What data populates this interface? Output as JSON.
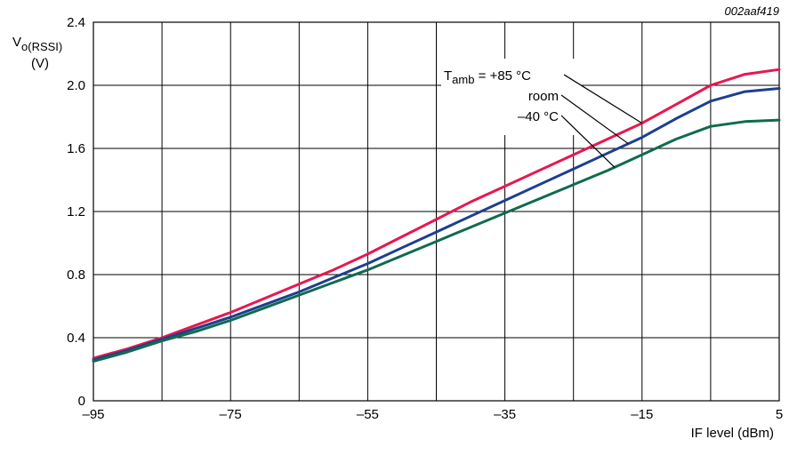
{
  "figure_id": "002aaf419",
  "chart_data": {
    "type": "line",
    "ylabel_main": "V",
    "ylabel_sub": "o(RSSI)",
    "ylabel_unit": "(V)",
    "xlabel": "IF level (dBm)",
    "xlim": [
      -95,
      5
    ],
    "ylim": [
      0,
      2.4
    ],
    "grid": true,
    "x_ticks": [
      -95,
      -75,
      -55,
      -35,
      -15,
      5
    ],
    "y_ticks": [
      0,
      0.4,
      0.8,
      1.2,
      1.6,
      2.0,
      2.4
    ],
    "x_tick_labels": [
      "–95",
      "–75",
      "–55",
      "–35",
      "–15",
      "5"
    ],
    "y_tick_labels": [
      "0",
      "0.4",
      "0.8",
      "1.2",
      "1.6",
      "2.0",
      "2.4"
    ],
    "x": [
      -95,
      -90,
      -85,
      -80,
      -75,
      -70,
      -65,
      -60,
      -55,
      -50,
      -45,
      -40,
      -35,
      -30,
      -25,
      -20,
      -15,
      -10,
      -5,
      0,
      5
    ],
    "series": [
      {
        "name": "Tamb = +85 °C",
        "color": "#e8174f",
        "values": [
          0.27,
          0.33,
          0.4,
          0.48,
          0.56,
          0.65,
          0.74,
          0.83,
          0.93,
          1.04,
          1.15,
          1.26,
          1.36,
          1.46,
          1.56,
          1.66,
          1.76,
          1.88,
          2.0,
          2.07,
          2.1
        ]
      },
      {
        "name": "room",
        "color": "#1d3f8f",
        "values": [
          0.26,
          0.32,
          0.39,
          0.46,
          0.53,
          0.61,
          0.69,
          0.78,
          0.87,
          0.97,
          1.07,
          1.17,
          1.27,
          1.37,
          1.47,
          1.57,
          1.67,
          1.79,
          1.9,
          1.96,
          1.98
        ]
      },
      {
        "name": "–40 °C",
        "color": "#0f6b4f",
        "values": [
          0.25,
          0.31,
          0.38,
          0.44,
          0.51,
          0.59,
          0.67,
          0.75,
          0.83,
          0.92,
          1.01,
          1.1,
          1.19,
          1.28,
          1.37,
          1.46,
          1.56,
          1.66,
          1.74,
          1.77,
          1.78
        ]
      }
    ],
    "legend": {
      "tamb_main": "T",
      "tamb_sub": "amb",
      "tamb_value": " = +85 °C",
      "room": "room",
      "minus40": "–40 °C",
      "placement": "top-right"
    }
  }
}
